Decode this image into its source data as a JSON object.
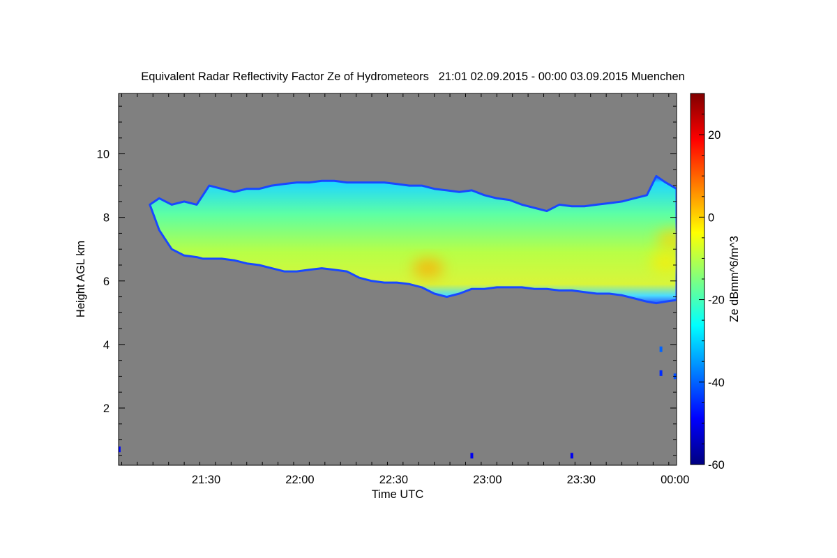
{
  "chart_data": {
    "type": "heatmap",
    "title": "Equivalent Radar Reflectivity Factor Ze of Hydrometeors   21:01 02.09.2015 - 00:00 03.09.2015 Muenchen",
    "xlabel": "Time UTC",
    "ylabel": "Height AGL km",
    "x_ticks": [
      {
        "label": "21:30",
        "value": 29
      },
      {
        "label": "22:00",
        "value": 59
      },
      {
        "label": "22:30",
        "value": 89
      },
      {
        "label": "23:00",
        "value": 119
      },
      {
        "label": "23:30",
        "value": 149
      },
      {
        "label": "00:00",
        "value": 179
      }
    ],
    "xlim": [
      1,
      179.5
    ],
    "x_unit": "minutes after 21:00 UTC",
    "y_ticks": [
      2,
      4,
      6,
      8,
      10
    ],
    "ylim": [
      0.2,
      11.9
    ],
    "colorbar": {
      "label": "Ze dBmm^6/m^3",
      "ticks": [
        -60,
        -40,
        -20,
        0,
        20
      ],
      "range": [
        -60,
        30
      ]
    },
    "background_color": "#808080",
    "echo_layer": {
      "description_values": "cloud top and base heights (km) at time (minutes after 21:00)",
      "time": [
        11,
        14,
        18,
        22,
        26,
        28,
        30,
        34,
        38,
        42,
        46,
        50,
        54,
        58,
        62,
        66,
        70,
        74,
        78,
        82,
        86,
        90,
        94,
        98,
        102,
        106,
        110,
        114,
        118,
        122,
        126,
        130,
        134,
        138,
        142,
        146,
        150,
        154,
        158,
        162,
        166,
        170,
        173,
        176,
        179.5
      ],
      "top": [
        8.4,
        8.6,
        8.4,
        8.5,
        8.4,
        8.7,
        9.0,
        8.9,
        8.8,
        8.9,
        8.9,
        9.0,
        9.05,
        9.1,
        9.1,
        9.15,
        9.15,
        9.1,
        9.1,
        9.1,
        9.1,
        9.05,
        9.0,
        9.0,
        8.9,
        8.85,
        8.8,
        8.85,
        8.7,
        8.6,
        8.55,
        8.4,
        8.3,
        8.2,
        8.4,
        8.35,
        8.35,
        8.4,
        8.45,
        8.5,
        8.6,
        8.7,
        9.3,
        9.1,
        8.9
      ],
      "base": [
        8.4,
        7.6,
        7.0,
        6.8,
        6.75,
        6.7,
        6.7,
        6.7,
        6.65,
        6.55,
        6.5,
        6.4,
        6.3,
        6.3,
        6.35,
        6.4,
        6.35,
        6.3,
        6.1,
        6.0,
        5.95,
        5.95,
        5.9,
        5.8,
        5.6,
        5.5,
        5.6,
        5.75,
        5.75,
        5.8,
        5.8,
        5.8,
        5.75,
        5.75,
        5.7,
        5.7,
        5.65,
        5.6,
        5.6,
        5.55,
        5.45,
        5.35,
        5.3,
        5.35,
        5.4
      ],
      "ze_core_max": -2
    },
    "hotspots": [
      {
        "t": 100,
        "h": 6.4,
        "ze": 4
      },
      {
        "t": 178,
        "h": 7.3,
        "ze": 0
      },
      {
        "t": 176,
        "h": 6.6,
        "ze": -2
      }
    ],
    "speckles": [
      {
        "t": 174.5,
        "h": 3.85,
        "ze": -40
      },
      {
        "t": 174.5,
        "h": 3.1,
        "ze": -45
      },
      {
        "t": 179,
        "h": 3.0,
        "ze": -42
      },
      {
        "t": 1.2,
        "h": 0.7,
        "ze": -48
      },
      {
        "t": 114,
        "h": 0.5,
        "ze": -50
      },
      {
        "t": 146,
        "h": 0.5,
        "ze": -50
      }
    ]
  }
}
